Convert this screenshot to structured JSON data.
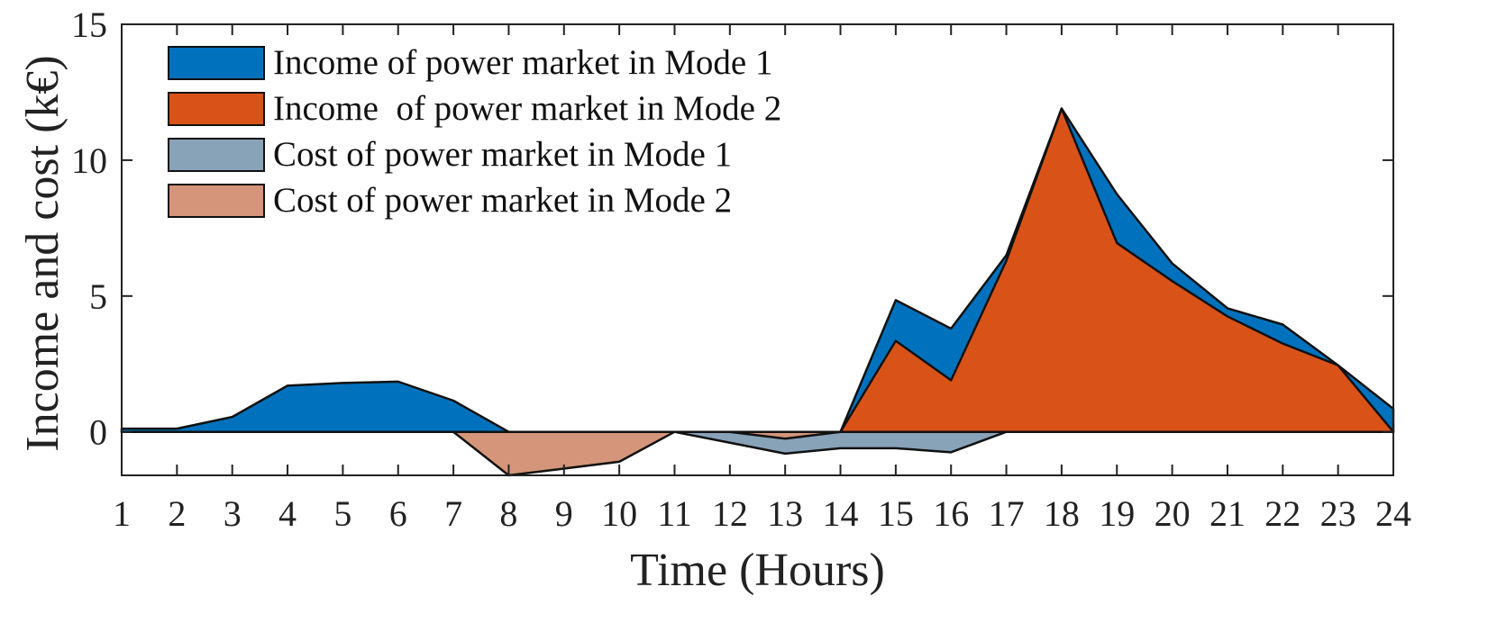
{
  "chart_data": {
    "type": "area",
    "title": "",
    "xlabel": "Time (Hours)",
    "ylabel": "Income  and cost (k€)",
    "x": [
      1,
      2,
      3,
      4,
      5,
      6,
      7,
      8,
      9,
      10,
      11,
      12,
      13,
      14,
      15,
      16,
      17,
      18,
      19,
      20,
      21,
      22,
      23,
      24
    ],
    "xlim": [
      1,
      24
    ],
    "ylim": [
      -1.6,
      15
    ],
    "yticks": [
      0,
      5,
      10,
      15
    ],
    "grid": false,
    "legend_position": "top-left",
    "series": [
      {
        "name": "Income of power market in Mode 1",
        "color": "#0072BD",
        "values": [
          0.12,
          0.12,
          0.55,
          1.7,
          1.8,
          1.85,
          1.15,
          0,
          0,
          0,
          0,
          0,
          0,
          0,
          4.85,
          3.8,
          6.5,
          11.9,
          8.75,
          6.2,
          4.55,
          3.95,
          2.45,
          0.85
        ]
      },
      {
        "name": "Income  of power market in Mode 2",
        "color": "#D95319",
        "values": [
          0,
          0,
          0,
          0,
          0,
          0,
          0,
          0,
          0,
          0,
          0,
          0,
          0,
          0,
          3.35,
          1.9,
          6.3,
          11.9,
          6.95,
          5.55,
          4.25,
          3.25,
          2.45,
          0
        ]
      },
      {
        "name": "Cost of power market in Mode 1",
        "color": "#88A2B8",
        "values": [
          0,
          0,
          0,
          0,
          0,
          0,
          0,
          0,
          0,
          0,
          0,
          -0.4,
          -0.8,
          -0.6,
          -0.6,
          -0.75,
          0,
          0,
          0,
          0,
          0,
          0,
          0,
          0
        ]
      },
      {
        "name": "Cost of power market in Mode 2",
        "color": "#D4957A",
        "values": [
          0,
          0,
          0,
          0,
          0,
          0,
          0,
          -1.6,
          -1.35,
          -1.1,
          0,
          0,
          -0.25,
          0,
          0,
          0,
          0,
          0,
          0,
          0,
          0,
          0,
          0,
          0
        ]
      }
    ]
  }
}
